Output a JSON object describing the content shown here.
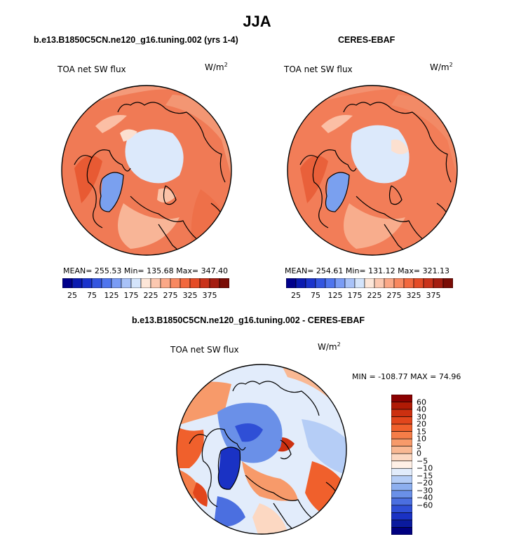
{
  "main_title": "JJA",
  "panels": [
    {
      "title": "b.e13.B1850C5CN.ne120_g16.tuning.002 (yrs 1-4)",
      "variable_label": "TOA net SW flux",
      "unit_base": "W/m",
      "unit_exp": "2",
      "stats_text": "MEAN= 255.53   Min= 135.68   Max= 347.40",
      "mean": 255.53,
      "min": 135.68,
      "max": 347.4
    },
    {
      "title": "CERES-EBAF",
      "variable_label": "TOA net SW flux",
      "unit_base": "W/m",
      "unit_exp": "2",
      "stats_text": "MEAN= 254.61   Min= 131.12   Max= 321.13",
      "mean": 254.61,
      "min": 131.12,
      "max": 321.13
    }
  ],
  "colorbar": {
    "tick_labels": [
      "25",
      "75",
      "125",
      "175",
      "225",
      "275",
      "325",
      "375"
    ],
    "colors": [
      "#00008b",
      "#0a1ab0",
      "#1a33cc",
      "#3355e0",
      "#4f75ee",
      "#7a9cf5",
      "#a8c2f8",
      "#d4e4fb",
      "#fde6d8",
      "#fcc8b0",
      "#fba887",
      "#f88860",
      "#f2683e",
      "#e44b26",
      "#c9321a",
      "#a41d10",
      "#7a0c05"
    ]
  },
  "diff_panel": {
    "title": "b.e13.B1850C5CN.ne120_g16.tuning.002 - CERES-EBAF",
    "variable_label": "TOA net SW flux",
    "unit_base": "W/m",
    "unit_exp": "2",
    "minmax_text": "MIN = -108.77 MAX =  74.96",
    "min": -108.77,
    "max": 74.96
  },
  "diff_colorbar": {
    "tick_labels": [
      "60",
      "40",
      "30",
      "20",
      "15",
      "10",
      "5",
      "0",
      "−5",
      "−10",
      "−15",
      "−20",
      "−30",
      "−40",
      "−60"
    ],
    "colors": [
      "#8b0000",
      "#b01a05",
      "#cc3010",
      "#e2461c",
      "#f0602c",
      "#f57d48",
      "#f79a6a",
      "#f9b893",
      "#fcd8c2",
      "#fff0e6",
      "#e2ecfb",
      "#b5cdf6",
      "#8dafef",
      "#6a90e8",
      "#4b6fe0",
      "#2f4fd6",
      "#1a32c4",
      "#0a1a9e",
      "#000080"
    ]
  }
}
